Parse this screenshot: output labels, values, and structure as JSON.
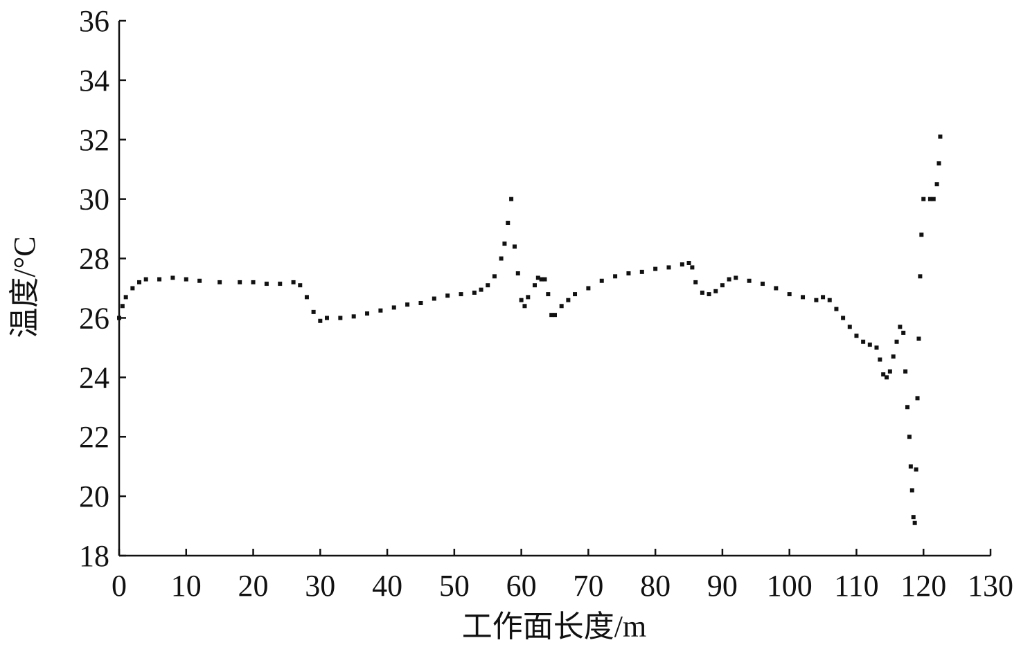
{
  "chart_data": {
    "type": "scatter",
    "x_label": "工作面长度/m",
    "y_label": "温度/°C",
    "xlim": [
      0,
      130
    ],
    "ylim": [
      18,
      36
    ],
    "xticks": [
      0,
      10,
      20,
      30,
      40,
      50,
      60,
      70,
      80,
      90,
      100,
      110,
      120,
      130
    ],
    "yticks": [
      18,
      20,
      22,
      24,
      26,
      28,
      30,
      32,
      34,
      36
    ],
    "color": "#111111",
    "x": [
      0,
      0.5,
      1,
      2,
      3,
      4,
      6,
      8,
      10,
      12,
      15,
      18,
      20,
      22,
      24,
      26,
      27,
      28,
      29,
      30,
      31,
      33,
      35,
      37,
      39,
      41,
      43,
      45,
      47,
      49,
      51,
      53,
      54,
      55,
      56,
      57,
      57.5,
      58,
      58.5,
      59,
      59.5,
      60,
      60.5,
      61,
      62,
      62.5,
      63,
      63.5,
      64,
      64.5,
      65,
      66,
      67,
      68,
      70,
      72,
      74,
      76,
      78,
      80,
      82,
      84,
      85,
      85.5,
      86,
      87,
      88,
      89,
      90,
      91,
      92,
      94,
      96,
      98,
      100,
      102,
      104,
      105,
      106,
      107,
      108,
      109,
      110,
      111,
      112,
      113,
      113.5,
      114,
      114.5,
      115,
      115.5,
      116,
      116.5,
      117,
      117.3,
      117.6,
      117.9,
      118.1,
      118.3,
      118.5,
      118.7,
      118.9,
      119.1,
      119.3,
      119.5,
      119.7,
      120,
      121,
      121.5,
      122,
      122.3,
      122.5
    ],
    "values": [
      26.0,
      26.4,
      26.7,
      27.0,
      27.2,
      27.3,
      27.3,
      27.35,
      27.3,
      27.25,
      27.2,
      27.2,
      27.2,
      27.15,
      27.15,
      27.2,
      27.1,
      26.7,
      26.2,
      25.9,
      26.0,
      26.0,
      26.05,
      26.15,
      26.25,
      26.35,
      26.45,
      26.5,
      26.65,
      26.75,
      26.8,
      26.85,
      26.95,
      27.1,
      27.4,
      28.0,
      28.5,
      29.2,
      30.0,
      28.4,
      27.5,
      26.6,
      26.4,
      26.7,
      27.1,
      27.35,
      27.3,
      27.3,
      26.8,
      26.1,
      26.1,
      26.4,
      26.6,
      26.8,
      27.0,
      27.25,
      27.4,
      27.5,
      27.55,
      27.65,
      27.7,
      27.8,
      27.85,
      27.7,
      27.2,
      26.85,
      26.8,
      26.9,
      27.1,
      27.3,
      27.35,
      27.25,
      27.15,
      27.0,
      26.8,
      26.7,
      26.6,
      26.7,
      26.6,
      26.3,
      26.0,
      25.7,
      25.4,
      25.2,
      25.1,
      25.0,
      24.6,
      24.1,
      24.0,
      24.2,
      24.7,
      25.2,
      25.7,
      25.5,
      24.2,
      23.0,
      22.0,
      21.0,
      20.2,
      19.3,
      19.1,
      20.9,
      23.3,
      25.3,
      27.4,
      28.8,
      30.0,
      30.0,
      30.0,
      30.5,
      31.2,
      32.1
    ]
  }
}
